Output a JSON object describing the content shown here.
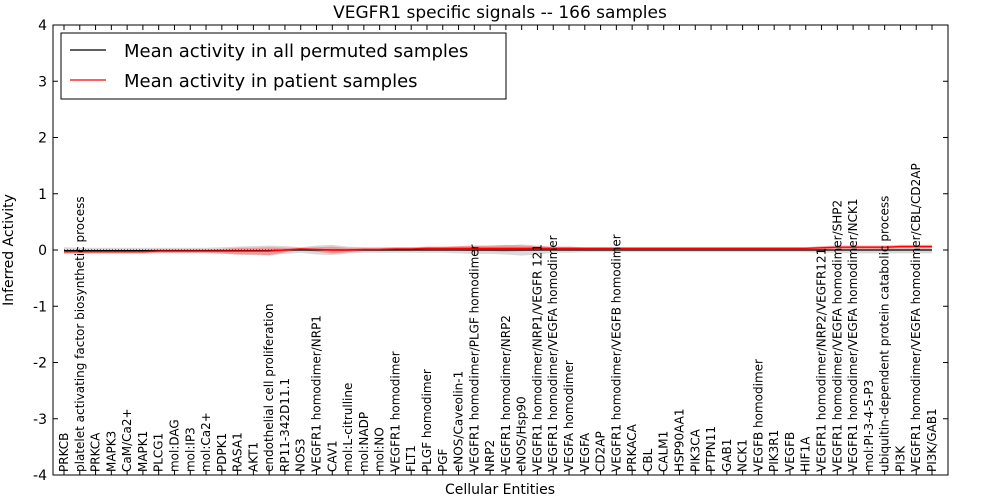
{
  "chart_data": {
    "type": "line",
    "title": "VEGFR1 specific signals -- 166 samples",
    "xlabel": "Cellular Entities",
    "ylabel": "Inferred Activity",
    "ylim": [
      -4,
      4
    ],
    "yticks": [
      -4,
      -3,
      -2,
      -1,
      0,
      1,
      2,
      3,
      4
    ],
    "grid": false,
    "legend_position": "top-left",
    "categories": [
      "PRKCB",
      "platelet activating factor biosynthetic process",
      "PRKCA",
      "MAPK3",
      "CaM/Ca2+",
      "MAPK1",
      "PLCG1",
      "mol:DAG",
      "mol:IP3",
      "mol:Ca2+",
      "PDPK1",
      "RASA1",
      "AKT1",
      "endothelial cell proliferation",
      "RP11-342D11.1",
      "NOS3",
      "VEGFR1 homodimer/NRP1",
      "CAV1",
      "mol:L-citrulline",
      "mol:NADP",
      "mol:NO",
      "VEGFR1 homodimer",
      "FLT1",
      "PLGF homodimer",
      "PGF",
      "eNOS/Caveolin-1",
      "VEGFR1 homodimer/PLGF homodimer",
      "NRP2",
      "VEGFR1 homodimer/NRP2",
      "eNOS/Hsp90",
      "VEGFR1 homodimer/NRP1/VEGFR 121",
      "VEGFR1 homodimer/VEGFA homodimer",
      "VEGFA homodimer",
      "VEGFA",
      "CD2AP",
      "VEGFR1 homodimer/VEGFB homodimer",
      "PRKACA",
      "CBL",
      "CALM1",
      "HSP90AA1",
      "PIK3CA",
      "PTPN11",
      "GAB1",
      "NCK1",
      "VEGFB homodimer",
      "PIK3R1",
      "VEGFB",
      "HIF1A",
      "VEGFR1 homodimer/NRP2/VEGFR121",
      "VEGFR1 homodimer/VEGFA homodimer/SHP2",
      "VEGFR1 homodimer/VEGFA homodimer/NCK1",
      "mol:PI-3-4-5-P3",
      "ubiquitin-dependent protein catabolic process",
      "PI3K",
      "VEGFR1 homodimer/VEGFA homodimer/CBL/CD2AP",
      "PI3K/GAB1"
    ],
    "series": [
      {
        "name": "Mean activity in all permuted samples",
        "color": "#000000",
        "values": [
          -0.01,
          -0.01,
          -0.01,
          -0.01,
          -0.01,
          -0.01,
          -0.01,
          -0.01,
          -0.01,
          -0.01,
          -0.01,
          -0.01,
          -0.01,
          -0.01,
          0.0,
          0.0,
          0.0,
          0.0,
          0.0,
          0.0,
          0.0,
          0.0,
          0.0,
          0.0,
          0.0,
          0.0,
          0.0,
          0.0,
          0.0,
          0.0,
          0.0,
          0.0,
          0.0,
          0.0,
          0.0,
          0.0,
          0.0,
          0.0,
          0.0,
          0.0,
          0.0,
          0.0,
          0.0,
          0.0,
          0.0,
          0.0,
          0.0,
          0.0,
          0.0,
          0.0,
          0.0,
          0.0,
          0.0,
          0.0,
          0.0,
          0.0
        ],
        "band": [
          0.06,
          0.05,
          0.05,
          0.05,
          0.05,
          0.05,
          0.05,
          0.05,
          0.05,
          0.05,
          0.06,
          0.07,
          0.08,
          0.09,
          0.07,
          0.05,
          0.08,
          0.09,
          0.06,
          0.05,
          0.05,
          0.05,
          0.05,
          0.05,
          0.05,
          0.06,
          0.07,
          0.07,
          0.08,
          0.1,
          0.08,
          0.05,
          0.05,
          0.04,
          0.04,
          0.04,
          0.04,
          0.04,
          0.04,
          0.04,
          0.04,
          0.04,
          0.04,
          0.04,
          0.04,
          0.04,
          0.04,
          0.04,
          0.05,
          0.05,
          0.06,
          0.06,
          0.06,
          0.06,
          0.06,
          0.06
        ],
        "band_color": "#aaaaaa"
      },
      {
        "name": "Mean activity in patient samples",
        "color": "#ff0000",
        "values": [
          -0.03,
          -0.03,
          -0.03,
          -0.03,
          -0.03,
          -0.03,
          -0.02,
          -0.02,
          -0.02,
          -0.02,
          -0.02,
          -0.02,
          -0.02,
          -0.02,
          0.0,
          0.02,
          0.01,
          0.0,
          0.0,
          0.01,
          0.01,
          0.02,
          0.02,
          0.03,
          0.03,
          0.03,
          0.03,
          0.03,
          0.03,
          0.03,
          0.03,
          0.03,
          0.03,
          0.03,
          0.03,
          0.03,
          0.03,
          0.03,
          0.03,
          0.03,
          0.03,
          0.03,
          0.03,
          0.03,
          0.03,
          0.03,
          0.03,
          0.03,
          0.04,
          0.05,
          0.05,
          0.05,
          0.05,
          0.06,
          0.06,
          0.06
        ],
        "band": [
          0.03,
          0.03,
          0.03,
          0.03,
          0.03,
          0.03,
          0.03,
          0.03,
          0.03,
          0.03,
          0.04,
          0.06,
          0.06,
          0.07,
          0.04,
          0.02,
          0.04,
          0.06,
          0.04,
          0.03,
          0.03,
          0.03,
          0.03,
          0.03,
          0.03,
          0.04,
          0.05,
          0.05,
          0.06,
          0.05,
          0.04,
          0.03,
          0.03,
          0.02,
          0.02,
          0.02,
          0.02,
          0.02,
          0.02,
          0.02,
          0.02,
          0.02,
          0.02,
          0.02,
          0.02,
          0.02,
          0.02,
          0.02,
          0.03,
          0.03,
          0.03,
          0.03,
          0.03,
          0.03,
          0.03,
          0.03
        ],
        "band_color": "#ff6666"
      }
    ]
  }
}
